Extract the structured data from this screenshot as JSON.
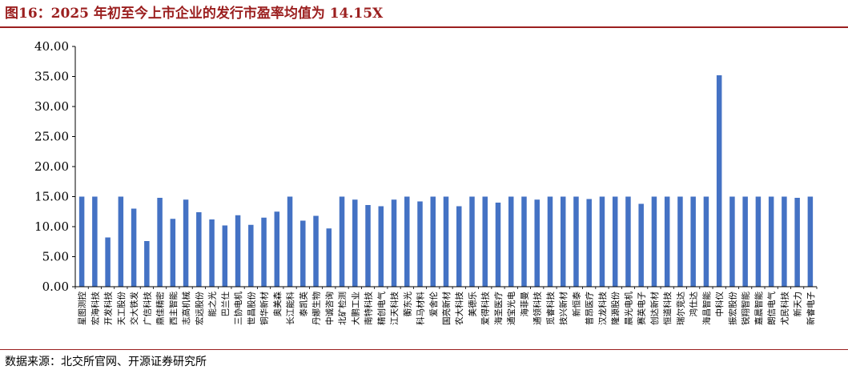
{
  "header": {
    "title": "图16：2025 年初至今上市企业的发行市盈率均值为 14.15X"
  },
  "footer": {
    "source": "数据来源：北交所官网、开源证券研究所"
  },
  "colors": {
    "bar": "#4472C4",
    "title": "#9b1f1f",
    "axis": "#000000"
  },
  "chart_data": {
    "type": "bar",
    "title": "图16：2025 年初至今上市企业的发行市盈率均值为 14.15X",
    "xlabel": "",
    "ylabel": "",
    "ylim": [
      0,
      40
    ],
    "yticks": [
      "0.00",
      "5.00",
      "10.00",
      "15.00",
      "20.00",
      "25.00",
      "30.00",
      "35.00",
      "40.00"
    ],
    "grid": false,
    "legend": "none",
    "categories": [
      "星图测控",
      "宏海科技",
      "开发科技",
      "天工股份",
      "交大铁发",
      "广信科技",
      "鼎佳精密",
      "西主智能",
      "志高机械",
      "宏远股份",
      "能之光",
      "巴兰仕",
      "三协电机",
      "世昌股份",
      "铜华新材",
      "奥美森",
      "长江能科",
      "泰凯英",
      "丹娜生物",
      "中诚咨询",
      "北矿检测",
      "大鹏工业",
      "南特科技",
      "精创电气",
      "江天科技",
      "蘅东光",
      "科马材料",
      "爱舍伦",
      "国亮新材",
      "农大科技",
      "美德乐",
      "爱得科技",
      "海圣医疗",
      "通宝光电",
      "海菲曼",
      "通领科技",
      "觅睿科技",
      "技兴新材",
      "新恒泰",
      "普昂医疗",
      "汉龙科技",
      "隆源股份",
      "晨光电机",
      "赛英电子",
      "创达新材",
      "恒道科技",
      "瑞尔竞达",
      "鸿仕达",
      "海昌智能",
      "中科仪",
      "振宏股份",
      "锐翔智能",
      "嘉晨智能",
      "朗信电气",
      "尤民科技",
      "新天力",
      "新睿电子"
    ],
    "values": [
      15.0,
      15.0,
      8.2,
      15.0,
      13.0,
      7.6,
      14.8,
      11.3,
      14.5,
      12.4,
      11.2,
      10.2,
      11.9,
      10.3,
      11.5,
      12.5,
      15.0,
      11.0,
      11.8,
      9.7,
      15.0,
      14.5,
      13.6,
      13.4,
      14.5,
      15.0,
      14.2,
      15.0,
      15.0,
      13.4,
      15.0,
      15.0,
      14.0,
      15.0,
      15.0,
      14.5,
      15.0,
      15.0,
      15.0,
      14.6,
      15.0,
      15.0,
      15.0,
      13.8,
      15.0,
      15.0,
      15.0,
      15.0,
      15.0,
      35.2,
      15.0,
      15.0,
      15.0,
      15.0,
      15.0,
      14.8,
      15.0
    ]
  }
}
